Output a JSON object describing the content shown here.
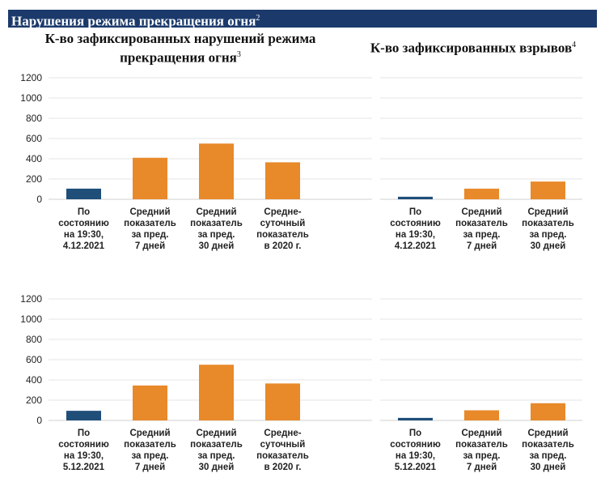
{
  "page": {
    "header_title": "Нарушения режима прекращения огня",
    "header_note": "2",
    "left_title": "К-во зафиксированных нарушений режима прекращения огня",
    "left_note": "3",
    "right_title": "К-во зафиксированных взрывов",
    "right_note": "4"
  },
  "colors": {
    "current": "#1f4e79",
    "average": "#e8892a",
    "grid": "#e6e6e6",
    "header": "#1b3a6b"
  },
  "chart_data": [
    {
      "type": "bar",
      "categories": [
        "По состоянию на 19:30, 4.12.2021",
        "Средний показатель за пред. 7 дней",
        "Средний показатель за пред. 30 дней",
        "Средне-суточный показатель в 2020 г."
      ],
      "category_lines": [
        [
          "По",
          "состоянию",
          "на 19:30,",
          "4.12.2021"
        ],
        [
          "Средний",
          "показатель",
          "за пред.",
          "7 дней"
        ],
        [
          "Средний",
          "показатель",
          "за пред.",
          "30 дней"
        ],
        [
          "Средне-",
          "суточный",
          "показатель",
          "в 2020 г."
        ]
      ],
      "values": [
        105,
        410,
        550,
        365
      ],
      "bar_colors": [
        "current",
        "average",
        "average",
        "average"
      ],
      "ylim": [
        0,
        1200
      ],
      "yticks": [
        0,
        200,
        400,
        600,
        800,
        1000,
        1200
      ],
      "grid": true
    },
    {
      "type": "bar",
      "categories": [
        "По состоянию на 19:30, 4.12.2021",
        "Средний показатель за пред. 7 дней",
        "Средний показатель за пред. 30 дней"
      ],
      "category_lines": [
        [
          "По",
          "состоянию",
          "на 19:30,",
          "4.12.2021"
        ],
        [
          "Средний",
          "показатель",
          "за пред.",
          "7 дней"
        ],
        [
          "Средний",
          "показатель",
          "за пред.",
          "30 дней"
        ]
      ],
      "values": [
        25,
        105,
        175
      ],
      "bar_colors": [
        "current",
        "average",
        "average"
      ],
      "ylim": [
        0,
        1200
      ],
      "yticks": [
        0,
        200,
        400,
        600,
        800,
        1000,
        1200
      ],
      "grid": true
    },
    {
      "type": "bar",
      "categories": [
        "По состоянию на 19:30, 5.12.2021",
        "Средний показатель за пред. 7 дней",
        "Средний показатель за пред. 30 дней",
        "Средне-суточный показатель в 2020 г."
      ],
      "category_lines": [
        [
          "По",
          "состоянию",
          "на 19:30,",
          "5.12.2021"
        ],
        [
          "Средний",
          "показатель",
          "за пред.",
          "7 дней"
        ],
        [
          "Средний",
          "показатель",
          "за пред.",
          "30 дней"
        ],
        [
          "Средне-",
          "суточный",
          "показатель",
          "в 2020 г."
        ]
      ],
      "values": [
        95,
        345,
        550,
        365
      ],
      "bar_colors": [
        "current",
        "average",
        "average",
        "average"
      ],
      "ylim": [
        0,
        1200
      ],
      "yticks": [
        0,
        200,
        400,
        600,
        800,
        1000,
        1200
      ],
      "grid": true
    },
    {
      "type": "bar",
      "categories": [
        "По состоянию на 19:30, 5.12.2021",
        "Средний показатель за пред. 7 дней",
        "Средний показатель за пред. 30 дней"
      ],
      "category_lines": [
        [
          "По",
          "состоянию",
          "на 19:30,",
          "5.12.2021"
        ],
        [
          "Средний",
          "показатель",
          "за пред.",
          "7 дней"
        ],
        [
          "Средний",
          "показатель",
          "за пред.",
          "30 дней"
        ]
      ],
      "values": [
        25,
        100,
        170
      ],
      "bar_colors": [
        "current",
        "average",
        "average"
      ],
      "ylim": [
        0,
        1200
      ],
      "yticks": [
        0,
        200,
        400,
        600,
        800,
        1000,
        1200
      ],
      "grid": true
    }
  ]
}
